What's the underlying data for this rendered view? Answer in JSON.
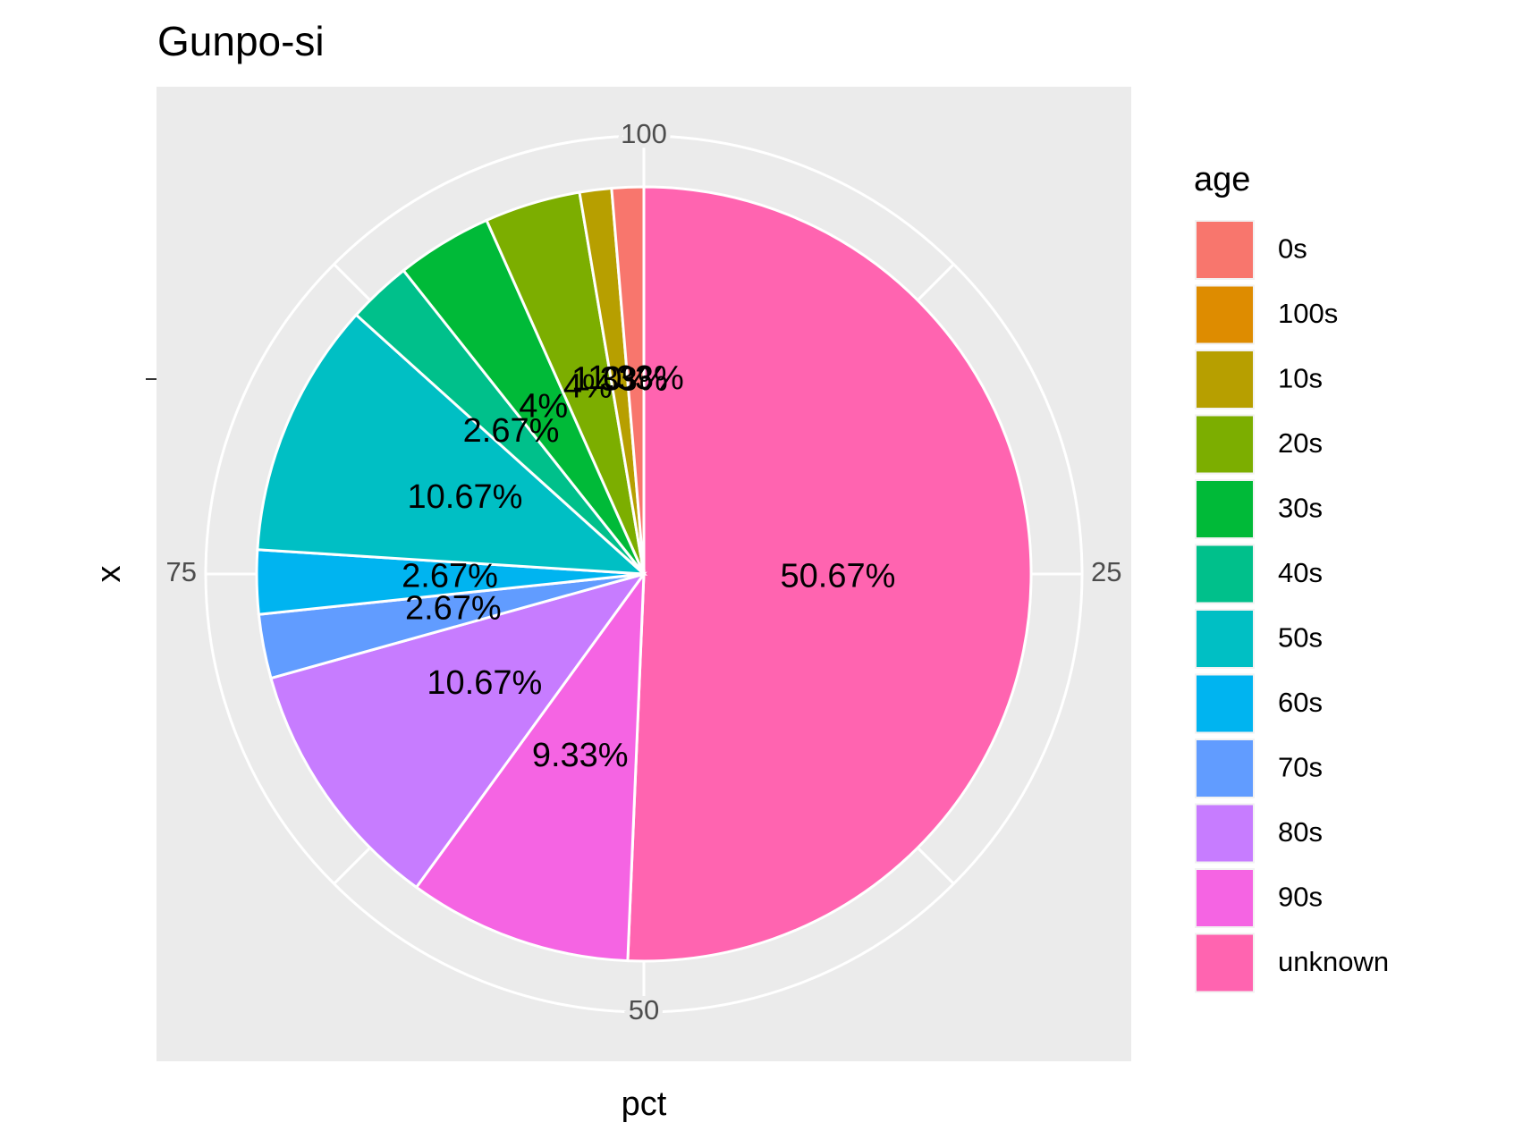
{
  "chart_data": {
    "type": "pie",
    "title": "Gunpo-si",
    "xlabel": "x",
    "ylabel": "pct",
    "theta_ticks": [
      "100",
      "25",
      "50",
      "75"
    ],
    "legend": {
      "title": "age",
      "placement": "right"
    },
    "slices": [
      {
        "category": "0s",
        "value": 1.33,
        "label": "1.33%",
        "color": "#F8766D"
      },
      {
        "category": "100s",
        "value": 0,
        "label": "0%",
        "color": "#DE8C00"
      },
      {
        "category": "10s",
        "value": 1.33,
        "label": "1.33%",
        "color": "#B79F00"
      },
      {
        "category": "20s",
        "value": 4,
        "label": "4%",
        "color": "#7CAE00"
      },
      {
        "category": "30s",
        "value": 4,
        "label": "4%",
        "color": "#00BA38"
      },
      {
        "category": "40s",
        "value": 2.67,
        "label": "2.67%",
        "color": "#00C08B"
      },
      {
        "category": "50s",
        "value": 10.67,
        "label": "10.67%",
        "color": "#00BFC4"
      },
      {
        "category": "60s",
        "value": 2.67,
        "label": "2.67%",
        "color": "#00B4F0"
      },
      {
        "category": "70s",
        "value": 2.67,
        "label": "2.67%",
        "color": "#619CFF"
      },
      {
        "category": "80s",
        "value": 10.67,
        "label": "10.67%",
        "color": "#C77CFF"
      },
      {
        "category": "90s",
        "value": 9.33,
        "label": "9.33%",
        "color": "#F564E3"
      },
      {
        "category": "unknown",
        "value": 50.67,
        "label": "50.67%",
        "color": "#FF64B0"
      }
    ]
  }
}
